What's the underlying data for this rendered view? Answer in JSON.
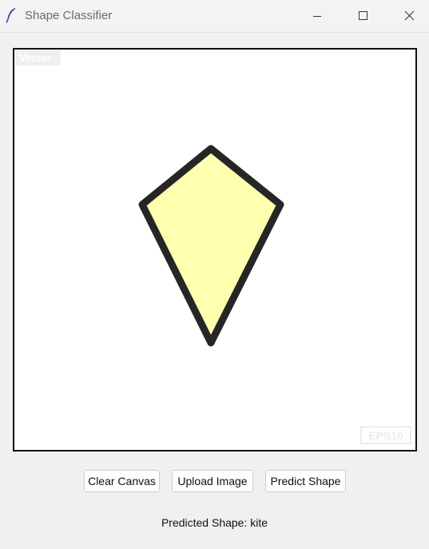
{
  "window": {
    "title": "Shape Classifier",
    "app_icon": "feather-icon",
    "controls": [
      "minimize-icon",
      "maximize-icon",
      "close-icon"
    ]
  },
  "canvas": {
    "watermark_top_left": "Vector",
    "watermark_bottom_right": "EPS10",
    "shape": {
      "type": "kite",
      "fill_color": "#ffffb0",
      "stroke_color": "#262626"
    }
  },
  "buttons": {
    "clear_label": "Clear Canvas",
    "upload_label": "Upload Image",
    "predict_label": "Predict Shape"
  },
  "result": {
    "prediction_text": "Predicted Shape: kite"
  }
}
